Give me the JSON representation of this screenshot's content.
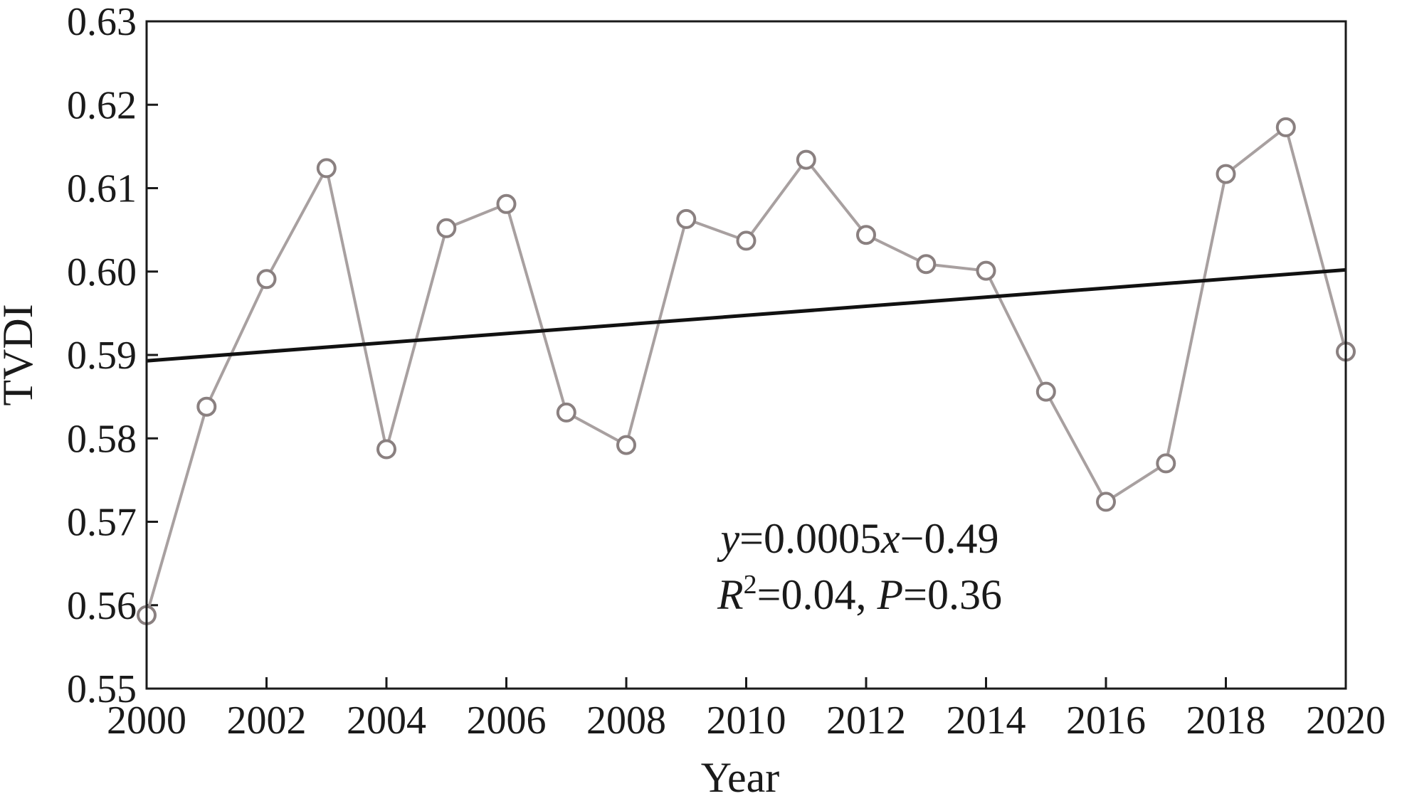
{
  "chart_data": {
    "type": "line",
    "title": "",
    "xlabel": "Year",
    "ylabel": "TVDI",
    "xlim": [
      2000,
      2020
    ],
    "ylim": [
      0.55,
      0.63
    ],
    "x_ticks": [
      2000,
      2002,
      2004,
      2006,
      2008,
      2010,
      2012,
      2014,
      2016,
      2018,
      2020
    ],
    "x_tick_labels": [
      "2000",
      "2002",
      "2004",
      "2006",
      "2008",
      "2010",
      "2012",
      "2014",
      "2016",
      "2018",
      "2020"
    ],
    "y_ticks": [
      0.55,
      0.56,
      0.57,
      0.58,
      0.59,
      0.6,
      0.61,
      0.62,
      0.63
    ],
    "y_tick_labels": [
      "0.55",
      "0.56",
      "0.57",
      "0.58",
      "0.59",
      "0.60",
      "0.61",
      "0.62",
      "0.63"
    ],
    "grid": false,
    "series": [
      {
        "type": "line",
        "marker": "open-circle",
        "color": "#a8a0a0",
        "marker_edge_color": "#8a8080",
        "x": [
          2000,
          2001,
          2002,
          2003,
          2004,
          2005,
          2006,
          2007,
          2008,
          2009,
          2010,
          2011,
          2012,
          2013,
          2014,
          2015,
          2016,
          2017,
          2018,
          2019,
          2020
        ],
        "y": [
          0.5588,
          0.5838,
          0.5991,
          0.6124,
          0.5787,
          0.6052,
          0.6081,
          0.5831,
          0.5792,
          0.6063,
          0.6037,
          0.6134,
          0.6044,
          0.6009,
          0.6001,
          0.5856,
          0.5724,
          0.577,
          0.6117,
          0.6173,
          0.5904
        ]
      },
      {
        "type": "trend",
        "color": "#111111",
        "x": [
          2000,
          2020
        ],
        "y": [
          0.5893,
          0.6002
        ]
      }
    ],
    "annotations": {
      "eq_y": "y",
      "eq_mid": "=0.0005",
      "eq_x": "x",
      "eq_tail": "−0.49",
      "r_letter": "R",
      "r_sup": "2",
      "r_mid": "=0.04, ",
      "p_letter": "P",
      "p_tail": "=0.36"
    }
  }
}
